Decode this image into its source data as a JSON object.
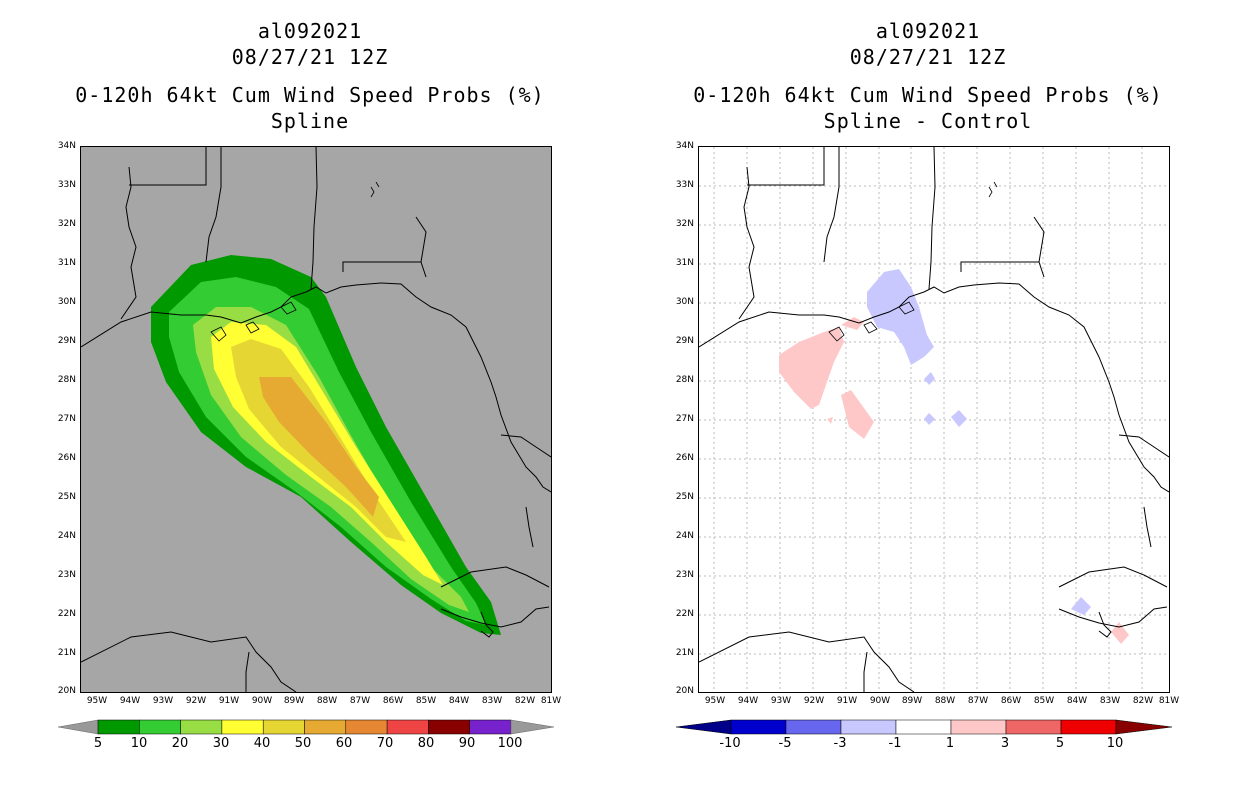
{
  "left": {
    "title_line1": "al092021",
    "title_line2": "08/27/21 12Z",
    "title_line3": "0-120h 64kt Cum Wind Speed Probs (%)",
    "title_line4": "Spline",
    "lat_labels": [
      "34N",
      "33N",
      "32N",
      "31N",
      "30N",
      "29N",
      "28N",
      "27N",
      "26N",
      "25N",
      "24N",
      "23N",
      "22N",
      "21N",
      "20N"
    ],
    "lon_labels": [
      "95W",
      "94W",
      "93W",
      "92W",
      "91W",
      "90W",
      "89W",
      "88W",
      "87W",
      "86W",
      "85W",
      "84W",
      "83W",
      "82W",
      "81W"
    ],
    "colorbar": {
      "ticks": [
        "5",
        "10",
        "20",
        "30",
        "40",
        "50",
        "60",
        "70",
        "80",
        "90",
        "100"
      ],
      "colors": [
        "#009900",
        "#33cc33",
        "#99dd44",
        "#ffff33",
        "#e6d633",
        "#e6aa33",
        "#e68833",
        "#ee4444",
        "#880000",
        "#7722cc"
      ],
      "end_color": "#999999"
    }
  },
  "right": {
    "title_line1": "al092021",
    "title_line2": "08/27/21 12Z",
    "title_line3": "0-120h 64kt Cum Wind Speed Probs (%)",
    "title_line4": "Spline - Control",
    "lat_labels": [
      "34N",
      "33N",
      "32N",
      "31N",
      "30N",
      "29N",
      "28N",
      "27N",
      "26N",
      "25N",
      "24N",
      "23N",
      "22N",
      "21N",
      "20N"
    ],
    "lon_labels": [
      "95W",
      "94W",
      "93W",
      "92W",
      "91W",
      "90W",
      "89W",
      "88W",
      "87W",
      "86W",
      "85W",
      "84W",
      "83W",
      "82W",
      "81W"
    ],
    "colorbar": {
      "ticks": [
        "-10",
        "-5",
        "-3",
        "-1",
        "1",
        "3",
        "5",
        "10"
      ],
      "colors": [
        "#0000cc",
        "#6666ee",
        "#c8c8ff",
        "#ffffff",
        "#ffc8c8",
        "#ee6666",
        "#ee0000"
      ],
      "end_left": "#000088",
      "end_right": "#880000"
    }
  }
}
